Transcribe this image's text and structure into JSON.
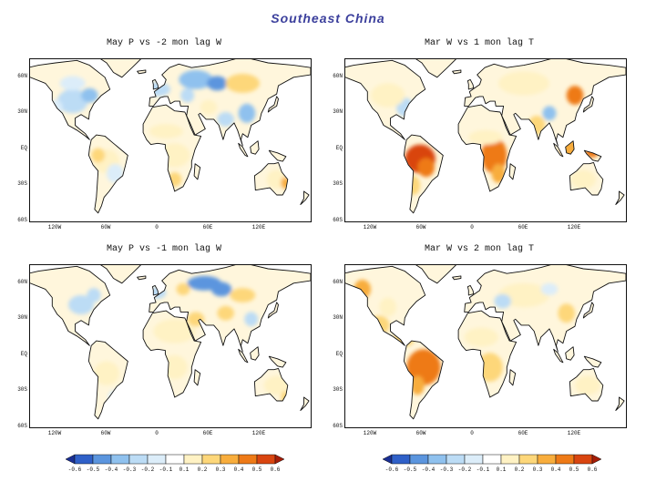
{
  "title": "Southeast China",
  "panels": [
    {
      "id": "p1",
      "title": "May P vs -2 mon lag W",
      "pattern": "precip-minus2"
    },
    {
      "id": "p2",
      "title": "Mar W vs 1 mon lag T",
      "pattern": "temp-1"
    },
    {
      "id": "p3",
      "title": "May P vs -1 mon lag W",
      "pattern": "precip-minus1"
    },
    {
      "id": "p4",
      "title": "Mar W vs 2 mon lag T",
      "pattern": "temp-2"
    }
  ],
  "latitude_labels": [
    "60N",
    "30N",
    "EQ",
    "30S",
    "60S"
  ],
  "longitude_labels": [
    "120W",
    "60W",
    "0",
    "60E",
    "120E"
  ],
  "colorbar": {
    "labels": [
      "-0.6",
      "-0.5",
      "-0.4",
      "-0.3",
      "-0.2",
      "-0.1",
      "0.1",
      "0.2",
      "0.3",
      "0.4",
      "0.5",
      "0.6"
    ],
    "colors": [
      "#1a2f94",
      "#2f60c8",
      "#5b95de",
      "#8fc1ee",
      "#bcdcf5",
      "#dcedf9",
      "#ffffff",
      "#fff2c4",
      "#fdd77a",
      "#f8ad3c",
      "#ee7a17",
      "#d94510",
      "#a51d08"
    ]
  },
  "colorbars": [
    {
      "id": "cb-left"
    },
    {
      "id": "cb-right"
    }
  ]
}
